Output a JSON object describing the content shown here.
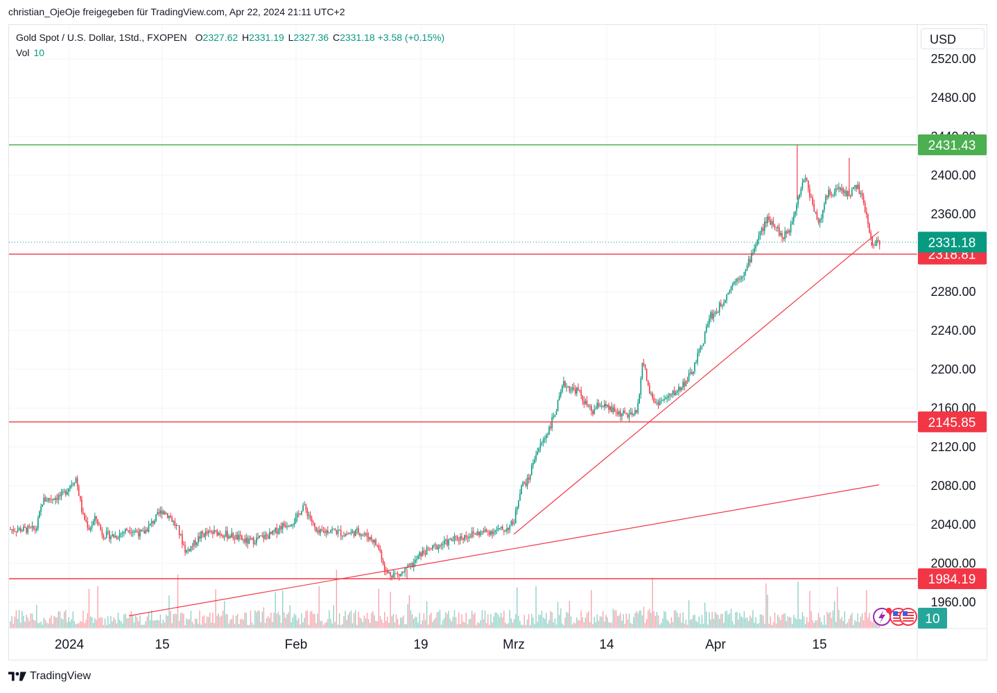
{
  "credit": "christian_OjeOje freigegeben für TradingView.com, Apr 22, 2024 21:11 UTC+2",
  "legend": {
    "symbol": "Gold Spot / U.S. Dollar, 1Std., FXOPEN",
    "o_label": "O",
    "o_value": "2327.62",
    "h_label": "H",
    "h_value": "2331.19",
    "l_label": "L",
    "l_value": "2327.36",
    "c_label": "C",
    "c_value": "2331.18",
    "change": "+3.58 (+0.15%)"
  },
  "vol_legend": {
    "label": "Vol",
    "value": "10"
  },
  "currency_button": "USD",
  "brand": {
    "name": "TradingView",
    "logo_icon": "tradingview-logo-icon"
  },
  "colors": {
    "up": "#089981",
    "down": "#f23645",
    "support": "#f23645",
    "resistance": "#4caf50",
    "grid": "#f0f3fa"
  },
  "chart_data": {
    "type": "candlestick",
    "symbol": "Gold Spot / U.S. Dollar",
    "interval": "1Std.",
    "exchange": "FXOPEN",
    "currency": "USD",
    "ylim": [
      1946,
      2545
    ],
    "y_ticks": [
      1960,
      2000,
      2040,
      2080,
      2120,
      2160,
      2200,
      2240,
      2280,
      2320,
      2360,
      2400,
      2440,
      2480,
      2520
    ],
    "y_tick_labels": [
      "1960.00",
      "2000.00",
      "2040.00",
      "2080.00",
      "2120.00",
      "2160.00",
      "2200.00",
      "2240.00",
      "2280.00",
      "2320.00",
      "2360.00",
      "2400.00",
      "2440.00",
      "2480.00",
      "2520.00"
    ],
    "x_ticks": [
      {
        "label": "2024",
        "date": "2024-01-01"
      },
      {
        "label": "15",
        "date": "2024-01-15"
      },
      {
        "label": "Feb",
        "date": "2024-02-01"
      },
      {
        "label": "19",
        "date": "2024-02-19"
      },
      {
        "label": "Mrz",
        "date": "2024-03-01"
      },
      {
        "label": "14",
        "date": "2024-03-14"
      },
      {
        "label": "Apr",
        "date": "2024-04-01"
      },
      {
        "label": "15",
        "date": "2024-04-15"
      }
    ],
    "price_path": [
      {
        "date": "2023-12-27",
        "price": 2035
      },
      {
        "date": "2023-12-28",
        "price": 2065
      },
      {
        "date": "2023-12-31",
        "price": 2070
      },
      {
        "date": "2024-01-01",
        "price": 2080
      },
      {
        "date": "2024-01-02",
        "price": 2088
      },
      {
        "date": "2024-01-03",
        "price": 2050
      },
      {
        "date": "2024-01-04",
        "price": 2036
      },
      {
        "date": "2024-01-05",
        "price": 2047
      },
      {
        "date": "2024-01-06",
        "price": 2030
      },
      {
        "date": "2024-01-08",
        "price": 2028
      },
      {
        "date": "2024-01-10",
        "price": 2036
      },
      {
        "date": "2024-01-12",
        "price": 2030
      },
      {
        "date": "2024-01-13",
        "price": 2038
      },
      {
        "date": "2024-01-15",
        "price": 2055
      },
      {
        "date": "2024-01-16",
        "price": 2048
      },
      {
        "date": "2024-01-17",
        "price": 2035
      },
      {
        "date": "2024-01-18",
        "price": 2012
      },
      {
        "date": "2024-01-19",
        "price": 2020
      },
      {
        "date": "2024-01-20",
        "price": 2030
      },
      {
        "date": "2024-01-22",
        "price": 2032
      },
      {
        "date": "2024-01-24",
        "price": 2028
      },
      {
        "date": "2024-01-26",
        "price": 2022
      },
      {
        "date": "2024-01-27",
        "price": 2025
      },
      {
        "date": "2024-01-29",
        "price": 2030
      },
      {
        "date": "2024-01-30",
        "price": 2038
      },
      {
        "date": "2024-02-01",
        "price": 2045
      },
      {
        "date": "2024-02-02",
        "price": 2060
      },
      {
        "date": "2024-02-03",
        "price": 2048
      },
      {
        "date": "2024-02-04",
        "price": 2030
      },
      {
        "date": "2024-02-06",
        "price": 2035
      },
      {
        "date": "2024-02-08",
        "price": 2030
      },
      {
        "date": "2024-02-10",
        "price": 2033
      },
      {
        "date": "2024-02-12",
        "price": 2025
      },
      {
        "date": "2024-02-13",
        "price": 2015
      },
      {
        "date": "2024-02-14",
        "price": 1990
      },
      {
        "date": "2024-02-16",
        "price": 1988
      },
      {
        "date": "2024-02-18",
        "price": 2000
      },
      {
        "date": "2024-02-19",
        "price": 2010
      },
      {
        "date": "2024-02-21",
        "price": 2018
      },
      {
        "date": "2024-02-23",
        "price": 2025
      },
      {
        "date": "2024-02-25",
        "price": 2030
      },
      {
        "date": "2024-02-27",
        "price": 2033
      },
      {
        "date": "2024-02-29",
        "price": 2035
      },
      {
        "date": "2024-03-01",
        "price": 2042
      },
      {
        "date": "2024-03-02",
        "price": 2080
      },
      {
        "date": "2024-03-03",
        "price": 2085
      },
      {
        "date": "2024-03-04",
        "price": 2112
      },
      {
        "date": "2024-03-05",
        "price": 2125
      },
      {
        "date": "2024-03-06",
        "price": 2140
      },
      {
        "date": "2024-03-07",
        "price": 2160
      },
      {
        "date": "2024-03-08",
        "price": 2185
      },
      {
        "date": "2024-03-09",
        "price": 2180
      },
      {
        "date": "2024-03-10",
        "price": 2178
      },
      {
        "date": "2024-03-11",
        "price": 2165
      },
      {
        "date": "2024-03-12",
        "price": 2155
      },
      {
        "date": "2024-03-13",
        "price": 2165
      },
      {
        "date": "2024-03-14",
        "price": 2160
      },
      {
        "date": "2024-03-16",
        "price": 2155
      },
      {
        "date": "2024-03-18",
        "price": 2152
      },
      {
        "date": "2024-03-19",
        "price": 2155
      },
      {
        "date": "2024-03-20",
        "price": 2210
      },
      {
        "date": "2024-03-21",
        "price": 2178
      },
      {
        "date": "2024-03-22",
        "price": 2165
      },
      {
        "date": "2024-03-24",
        "price": 2170
      },
      {
        "date": "2024-03-25",
        "price": 2175
      },
      {
        "date": "2024-03-26",
        "price": 2180
      },
      {
        "date": "2024-03-28",
        "price": 2195
      },
      {
        "date": "2024-03-30",
        "price": 2230
      },
      {
        "date": "2024-03-31",
        "price": 2255
      },
      {
        "date": "2024-04-01",
        "price": 2258
      },
      {
        "date": "2024-04-02",
        "price": 2270
      },
      {
        "date": "2024-04-03",
        "price": 2285
      },
      {
        "date": "2024-04-04",
        "price": 2295
      },
      {
        "date": "2024-04-05",
        "price": 2300
      },
      {
        "date": "2024-04-06",
        "price": 2322
      },
      {
        "date": "2024-04-07",
        "price": 2340
      },
      {
        "date": "2024-04-08",
        "price": 2355
      },
      {
        "date": "2024-04-09",
        "price": 2350
      },
      {
        "date": "2024-04-10",
        "price": 2335
      },
      {
        "date": "2024-04-11",
        "price": 2345
      },
      {
        "date": "2024-04-12",
        "price": 2375
      },
      {
        "date": "2024-04-13",
        "price": 2400
      },
      {
        "date": "2024-04-14",
        "price": 2372
      },
      {
        "date": "2024-04-15",
        "price": 2350
      },
      {
        "date": "2024-04-16",
        "price": 2380
      },
      {
        "date": "2024-04-17",
        "price": 2385
      },
      {
        "date": "2024-04-18",
        "price": 2385
      },
      {
        "date": "2024-04-19",
        "price": 2380
      },
      {
        "date": "2024-04-20",
        "price": 2390
      },
      {
        "date": "2024-04-21",
        "price": 2370
      },
      {
        "date": "2024-04-22",
        "price": 2331.18
      }
    ],
    "swing_points": [
      {
        "date": "2024-04-12",
        "price": 2431.43
      },
      {
        "date": "2024-04-19",
        "price": 2418
      },
      {
        "date": "2024-02-17",
        "price": 1984.19
      },
      {
        "date": "2024-04-22",
        "price": 2327.36
      }
    ],
    "horizontal_levels": [
      {
        "price": 2431.43,
        "label": "2431.43",
        "color": "#4caf50"
      },
      {
        "price": 2318.81,
        "label": "2318.81",
        "color": "#f23645"
      },
      {
        "price": 2145.85,
        "label": "2145.85",
        "color": "#f23645"
      },
      {
        "price": 1984.19,
        "label": "1984.19",
        "color": "#f23645"
      }
    ],
    "trend_lines": [
      {
        "from": {
          "date": "2024-03-01",
          "price": 2030
        },
        "to": {
          "date": "2024-04-23",
          "price": 2342
        }
      },
      {
        "from": {
          "date": "2024-01-10",
          "price": 1946
        },
        "to": {
          "date": "2024-04-23",
          "price": 2081
        }
      }
    ],
    "last_price": {
      "price": 2331.18,
      "label": "2331.18",
      "color": "#089981"
    },
    "volume_last": {
      "value": 10,
      "label": "10",
      "color": "#26a69a"
    }
  }
}
